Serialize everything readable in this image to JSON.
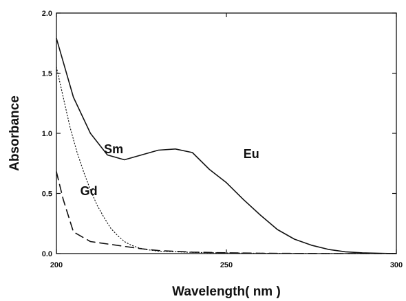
{
  "chart_data": {
    "type": "line",
    "xlabel": "Wavelength( nm )",
    "ylabel": "Absorbance",
    "xlim": [
      200,
      300
    ],
    "ylim": [
      0.0,
      2.0
    ],
    "xticks": [
      "200",
      "250",
      "300"
    ],
    "yticks": [
      "0.0",
      "0.5",
      "1.0",
      "1.5",
      "2.0"
    ],
    "grid": false,
    "series": [
      {
        "name": "Eu",
        "line_style": "solid",
        "x": [
          200,
          205,
          210,
          215,
          220,
          225,
          230,
          235,
          240,
          245,
          250,
          255,
          260,
          265,
          270,
          275,
          280,
          285,
          290,
          295,
          300
        ],
        "values": [
          1.79,
          1.3,
          1.0,
          0.82,
          0.78,
          0.82,
          0.86,
          0.87,
          0.84,
          0.7,
          0.59,
          0.45,
          0.32,
          0.2,
          0.12,
          0.07,
          0.035,
          0.015,
          0.006,
          0.002,
          0.0
        ]
      },
      {
        "name": "Sm",
        "line_style": "dotted",
        "x": [
          200,
          202,
          204,
          206,
          208,
          210,
          212,
          214,
          216,
          218,
          220,
          222,
          224,
          226,
          230,
          240,
          250,
          260,
          280,
          300
        ],
        "values": [
          1.55,
          1.3,
          1.05,
          0.85,
          0.68,
          0.53,
          0.4,
          0.3,
          0.21,
          0.15,
          0.1,
          0.07,
          0.05,
          0.035,
          0.02,
          0.01,
          0.005,
          0.003,
          0.0,
          0.0
        ]
      },
      {
        "name": "Gd",
        "line_style": "dashed",
        "x": [
          200,
          202,
          205,
          210,
          215,
          220,
          225,
          230,
          240,
          250,
          260,
          280,
          300
        ],
        "values": [
          0.68,
          0.45,
          0.18,
          0.1,
          0.08,
          0.06,
          0.04,
          0.025,
          0.012,
          0.006,
          0.003,
          0.0,
          0.0
        ]
      }
    ],
    "series_labels": [
      {
        "text": "Eu",
        "x": 255,
        "y": 0.83
      },
      {
        "text": "Sm",
        "x": 214,
        "y": 0.87
      },
      {
        "text": "Gd",
        "x": 207,
        "y": 0.52
      }
    ]
  }
}
